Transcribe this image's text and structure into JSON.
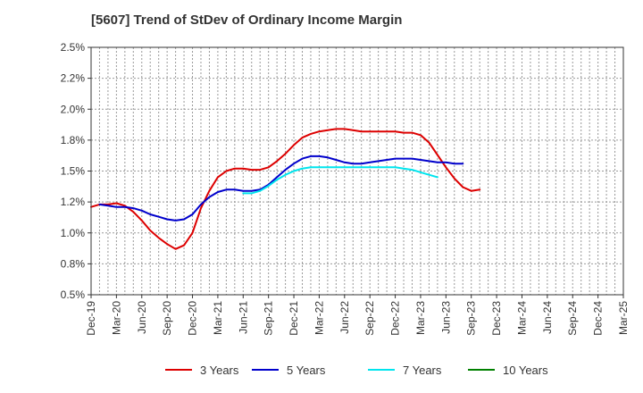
{
  "chart_data": {
    "type": "line",
    "title": "[5607]  Trend of StDev of Ordinary Income Margin",
    "xlabel": "",
    "ylabel": "",
    "x_ticks": [
      "Dec-19",
      "Mar-20",
      "Jun-20",
      "Sep-20",
      "Dec-20",
      "Mar-21",
      "Jun-21",
      "Sep-21",
      "Dec-21",
      "Mar-22",
      "Jun-22",
      "Sep-22",
      "Dec-22",
      "Mar-23",
      "Jun-23",
      "Sep-23",
      "Dec-23",
      "Mar-24",
      "Jun-24",
      "Sep-24",
      "Dec-24",
      "Mar-25"
    ],
    "y_ticks": [
      "0.5%",
      "0.8%",
      "1.0%",
      "1.2%",
      "1.5%",
      "1.8%",
      "2.0%",
      "2.2%",
      "2.5%"
    ],
    "ylim": [
      0.5,
      2.5
    ],
    "grid": true,
    "legend_position": "bottom",
    "series": [
      {
        "name": "3 Years",
        "color": "#dd0000",
        "start_index": 0,
        "values": [
          1.21,
          1.23,
          1.23,
          1.24,
          1.22,
          1.17,
          1.1,
          1.02,
          0.96,
          0.91,
          0.87,
          0.9,
          1.0,
          1.2,
          1.34,
          1.45,
          1.5,
          1.52,
          1.52,
          1.51,
          1.51,
          1.53,
          1.58,
          1.64,
          1.71,
          1.77,
          1.8,
          1.82,
          1.83,
          1.84,
          1.84,
          1.83,
          1.82,
          1.82,
          1.82,
          1.82,
          1.82,
          1.81,
          1.81,
          1.79,
          1.73,
          1.63,
          1.53,
          1.44,
          1.37,
          1.34,
          1.35
        ]
      },
      {
        "name": "5 Years",
        "color": "#0000cc",
        "start_index": 1,
        "values": [
          1.23,
          1.22,
          1.21,
          1.21,
          1.2,
          1.18,
          1.15,
          1.13,
          1.11,
          1.1,
          1.11,
          1.15,
          1.23,
          1.29,
          1.33,
          1.35,
          1.35,
          1.34,
          1.34,
          1.35,
          1.39,
          1.45,
          1.51,
          1.56,
          1.6,
          1.62,
          1.62,
          1.61,
          1.59,
          1.57,
          1.56,
          1.56,
          1.57,
          1.58,
          1.59,
          1.6,
          1.6,
          1.6,
          1.59,
          1.58,
          1.57,
          1.57,
          1.56,
          1.56
        ]
      },
      {
        "name": "7 Years",
        "color": "#00e5ee",
        "start_index": 18,
        "values": [
          1.32,
          1.32,
          1.34,
          1.38,
          1.43,
          1.47,
          1.5,
          1.52,
          1.53,
          1.53,
          1.53,
          1.53,
          1.53,
          1.53,
          1.53,
          1.53,
          1.53,
          1.53,
          1.53,
          1.52,
          1.51,
          1.49,
          1.47,
          1.45
        ]
      },
      {
        "name": "10 Years",
        "color": "#008000",
        "start_index": 0,
        "values": []
      }
    ]
  }
}
